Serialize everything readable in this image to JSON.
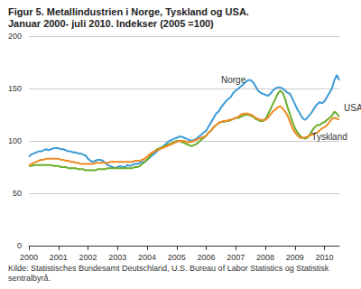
{
  "chart_data": {
    "type": "line",
    "title": "Figur 5. Metallindustrien i Norge, Tyskland og USA.",
    "subtitle": "Januar 2000- juli 2010. Indekser (2005 =100)",
    "source": "Kilde: Statistisches Bundesamt Deutschland, U.S. Bureau of Labor Statistics og Statistisk sentralbyrå.",
    "categories": [
      "2000",
      null,
      null,
      null,
      null,
      null,
      null,
      null,
      null,
      null,
      null,
      null,
      "2001",
      null,
      null,
      null,
      null,
      null,
      null,
      null,
      null,
      null,
      null,
      null,
      "2002",
      null,
      null,
      null,
      null,
      null,
      null,
      null,
      null,
      null,
      null,
      null,
      "2003",
      null,
      null,
      null,
      null,
      null,
      null,
      null,
      null,
      null,
      null,
      null,
      "2004",
      null,
      null,
      null,
      null,
      null,
      null,
      null,
      null,
      null,
      null,
      null,
      "2005",
      null,
      null,
      null,
      null,
      null,
      null,
      null,
      null,
      null,
      null,
      null,
      "2006",
      null,
      null,
      null,
      null,
      null,
      null,
      null,
      null,
      null,
      null,
      null,
      "2007",
      null,
      null,
      null,
      null,
      null,
      null,
      null,
      null,
      null,
      null,
      null,
      "2008",
      null,
      null,
      null,
      null,
      null,
      null,
      null,
      null,
      null,
      null,
      null,
      "2009",
      null,
      null,
      null,
      null,
      null,
      null,
      null,
      null,
      null,
      null,
      null,
      "2010",
      null,
      null,
      null,
      null,
      null,
      null
    ],
    "ylim": [
      0,
      200
    ],
    "yticks": [
      0,
      50,
      100,
      150,
      200
    ],
    "grid": true,
    "series": [
      {
        "name": "Norge",
        "color": "#3d9ad6",
        "values": [
          85,
          87,
          88,
          89,
          90,
          90,
          91,
          92,
          91,
          92,
          93,
          93,
          93,
          92,
          92,
          91,
          90,
          90,
          89,
          89,
          88,
          88,
          87,
          86,
          83,
          81,
          80,
          81,
          82,
          82,
          81,
          79,
          77,
          76,
          75,
          74,
          75,
          76,
          75,
          75,
          77,
          76,
          77,
          78,
          78,
          79,
          80,
          80,
          82,
          84,
          86,
          88,
          90,
          92,
          94,
          96,
          98,
          100,
          101,
          102,
          103,
          104,
          104,
          103,
          102,
          101,
          100,
          101,
          102,
          104,
          106,
          108,
          110,
          114,
          118,
          122,
          126,
          128,
          132,
          135,
          138,
          140,
          142,
          146,
          148,
          150,
          152,
          154,
          156,
          158,
          158,
          156,
          152,
          148,
          146,
          145,
          144,
          143,
          145,
          148,
          150,
          151,
          151,
          150,
          148,
          146,
          145,
          140,
          135,
          130,
          126,
          122,
          120,
          122,
          125,
          128,
          132,
          135,
          137,
          136,
          138,
          142,
          146,
          150,
          158,
          163,
          158
        ]
      },
      {
        "name": "USA",
        "color": "#6aad2a",
        "values": [
          76,
          76,
          77,
          77,
          77,
          77,
          77,
          77,
          77,
          77,
          76,
          76,
          76,
          75,
          75,
          75,
          74,
          74,
          74,
          74,
          73,
          73,
          73,
          72,
          72,
          72,
          72,
          72,
          73,
          73,
          73,
          73,
          74,
          74,
          74,
          74,
          74,
          74,
          74,
          74,
          74,
          74,
          74,
          75,
          75,
          76,
          78,
          80,
          82,
          85,
          88,
          90,
          92,
          93,
          94,
          95,
          96,
          97,
          98,
          99,
          100,
          100,
          99,
          98,
          97,
          96,
          95,
          96,
          97,
          99,
          101,
          103,
          105,
          108,
          110,
          113,
          115,
          117,
          118,
          118,
          119,
          119,
          120,
          121,
          122,
          122,
          123,
          124,
          125,
          125,
          124,
          123,
          121,
          120,
          119,
          119,
          121,
          125,
          130,
          135,
          140,
          145,
          148,
          146,
          140,
          132,
          125,
          118,
          112,
          108,
          105,
          103,
          102,
          103,
          106,
          110,
          113,
          115,
          115,
          117,
          118,
          120,
          122,
          124,
          128,
          126,
          123
        ]
      },
      {
        "name": "Tyskland",
        "color": "#f08a24",
        "values": [
          76,
          78,
          79,
          80,
          81,
          82,
          82,
          83,
          83,
          83,
          83,
          83,
          83,
          82,
          82,
          81,
          81,
          80,
          80,
          79,
          79,
          78,
          78,
          78,
          78,
          78,
          78,
          79,
          79,
          79,
          79,
          79,
          79,
          80,
          80,
          80,
          80,
          80,
          80,
          80,
          80,
          80,
          80,
          81,
          81,
          81,
          82,
          83,
          85,
          87,
          89,
          90,
          91,
          92,
          93,
          94,
          95,
          96,
          97,
          98,
          99,
          100,
          100,
          100,
          99,
          99,
          99,
          100,
          101,
          102,
          103,
          104,
          105,
          108,
          110,
          113,
          115,
          117,
          118,
          119,
          119,
          120,
          120,
          121,
          122,
          123,
          125,
          126,
          126,
          126,
          125,
          124,
          122,
          121,
          120,
          120,
          120,
          122,
          125,
          128,
          130,
          132,
          133,
          131,
          128,
          124,
          118,
          112,
          108,
          105,
          103,
          103,
          103,
          104,
          105,
          106,
          107,
          108,
          110,
          112,
          113,
          115,
          118,
          121,
          122,
          121,
          121
        ]
      }
    ]
  }
}
